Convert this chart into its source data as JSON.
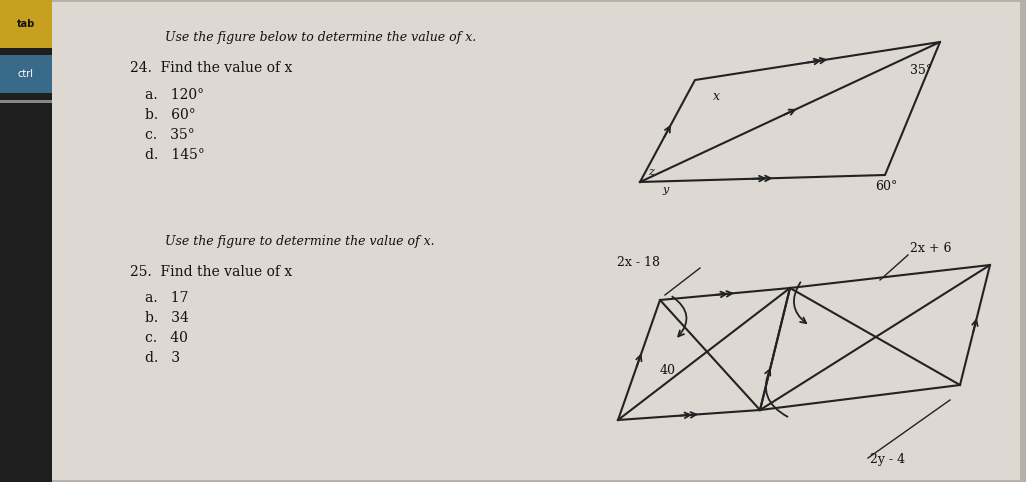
{
  "bg_color": "#b8b0a8",
  "paper_color": "#ddd8d2",
  "sidebar_color": "#1e1e1e",
  "tab_color": "#c8a020",
  "ctrl_color": "#3a6a8a",
  "q24_title": "Use the figure below to determine the value of x.",
  "q24_number": "24.  Find the value of x",
  "q24_choices": [
    "a.   120°",
    "b.   60°",
    "c.   35°",
    "d.   145°"
  ],
  "q25_title": "Use the figure to determine the value of x.",
  "q25_number": "25.  Find the value of x",
  "q25_choices": [
    "a.   17",
    "b.   34",
    "c.   40",
    "d.   3"
  ],
  "fig1_35": "35°",
  "fig1_60": "60°",
  "fig1_x": "x",
  "fig1_y": "y",
  "fig1_z": "z",
  "fig2_2x18": "2x - 18",
  "fig2_2x6": "2x + 6",
  "fig2_40": "40",
  "fig2_2y4": "2y - 4",
  "lc": "#222222",
  "tc": "#111111"
}
